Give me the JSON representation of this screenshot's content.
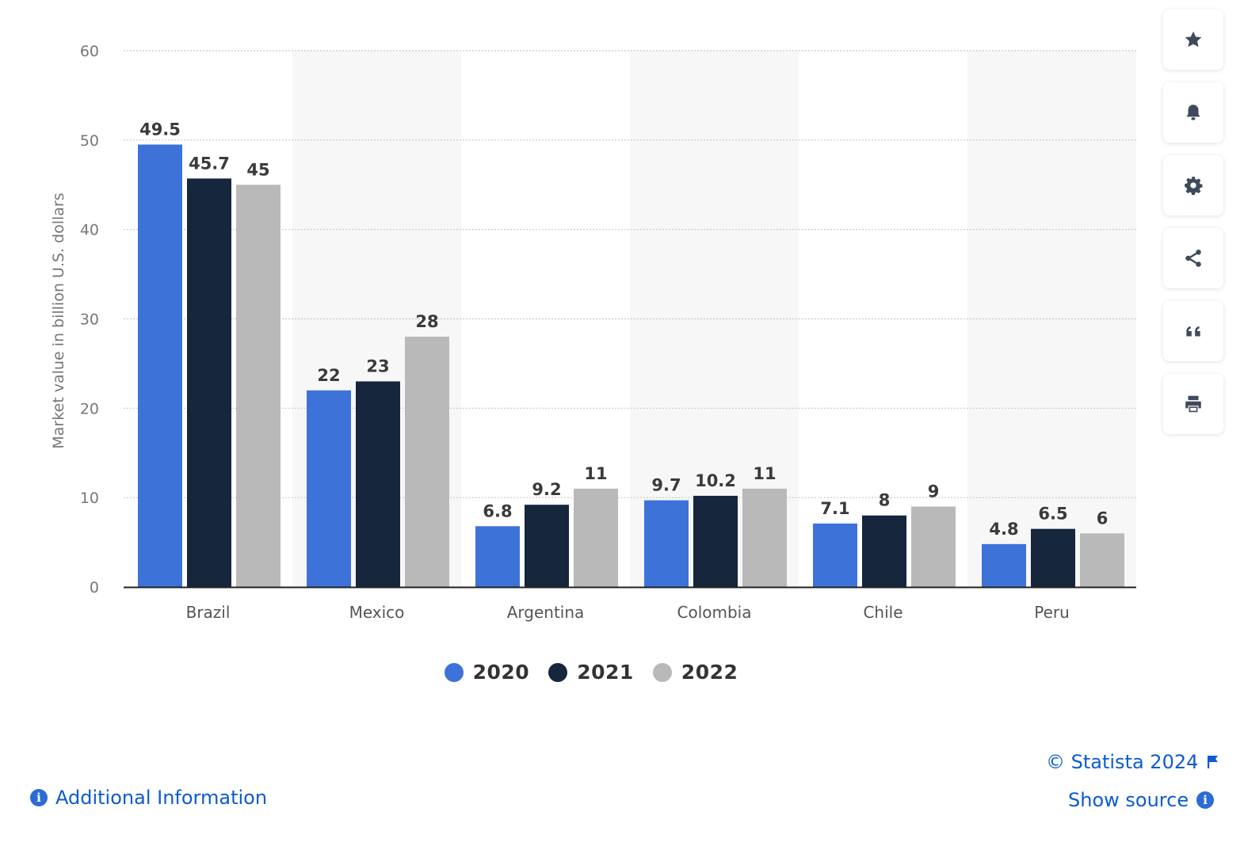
{
  "chart_data": {
    "type": "bar",
    "categories": [
      "Brazil",
      "Mexico",
      "Argentina",
      "Colombia",
      "Chile",
      "Peru"
    ],
    "series": [
      {
        "name": "2020",
        "values": [
          49.5,
          22,
          6.8,
          9.7,
          7.1,
          4.8
        ],
        "labels": [
          "49.5",
          "22",
          "6.8",
          "9.7",
          "7.1",
          "4.8"
        ]
      },
      {
        "name": "2021",
        "values": [
          45.7,
          23,
          9.2,
          10.2,
          8,
          6.5
        ],
        "labels": [
          "45.7",
          "23",
          "9.2",
          "10.2",
          "8",
          "6.5"
        ]
      },
      {
        "name": "2022",
        "values": [
          45,
          28,
          11,
          11,
          9,
          6
        ],
        "labels": [
          "45",
          "28",
          "11",
          "11",
          "9",
          "6"
        ]
      }
    ],
    "ylabel": "Market value in billion U.S. dollars",
    "ylim": [
      0,
      60
    ],
    "yticks": [
      0,
      10,
      20,
      30,
      40,
      50,
      60
    ],
    "grid": true,
    "legend_position": "bottom"
  },
  "colors": {
    "2020": "#3d72d9",
    "2021": "#15263d",
    "2022": "#b9b9b9",
    "grid": "#c8c8c8",
    "band": "#f7f7f8",
    "link": "#0c5bd1",
    "icon": "#3e4a5c"
  },
  "sidebar": {
    "buttons": [
      {
        "name": "favorite-button",
        "icon": "star-icon"
      },
      {
        "name": "notification-button",
        "icon": "bell-icon"
      },
      {
        "name": "settings-button",
        "icon": "gear-icon"
      },
      {
        "name": "share-button",
        "icon": "share-icon"
      },
      {
        "name": "cite-button",
        "icon": "quote-icon"
      },
      {
        "name": "print-button",
        "icon": "print-icon"
      }
    ]
  },
  "footer": {
    "copyright": "© Statista 2024",
    "show_source": "Show source",
    "additional_info": "Additional Information"
  }
}
